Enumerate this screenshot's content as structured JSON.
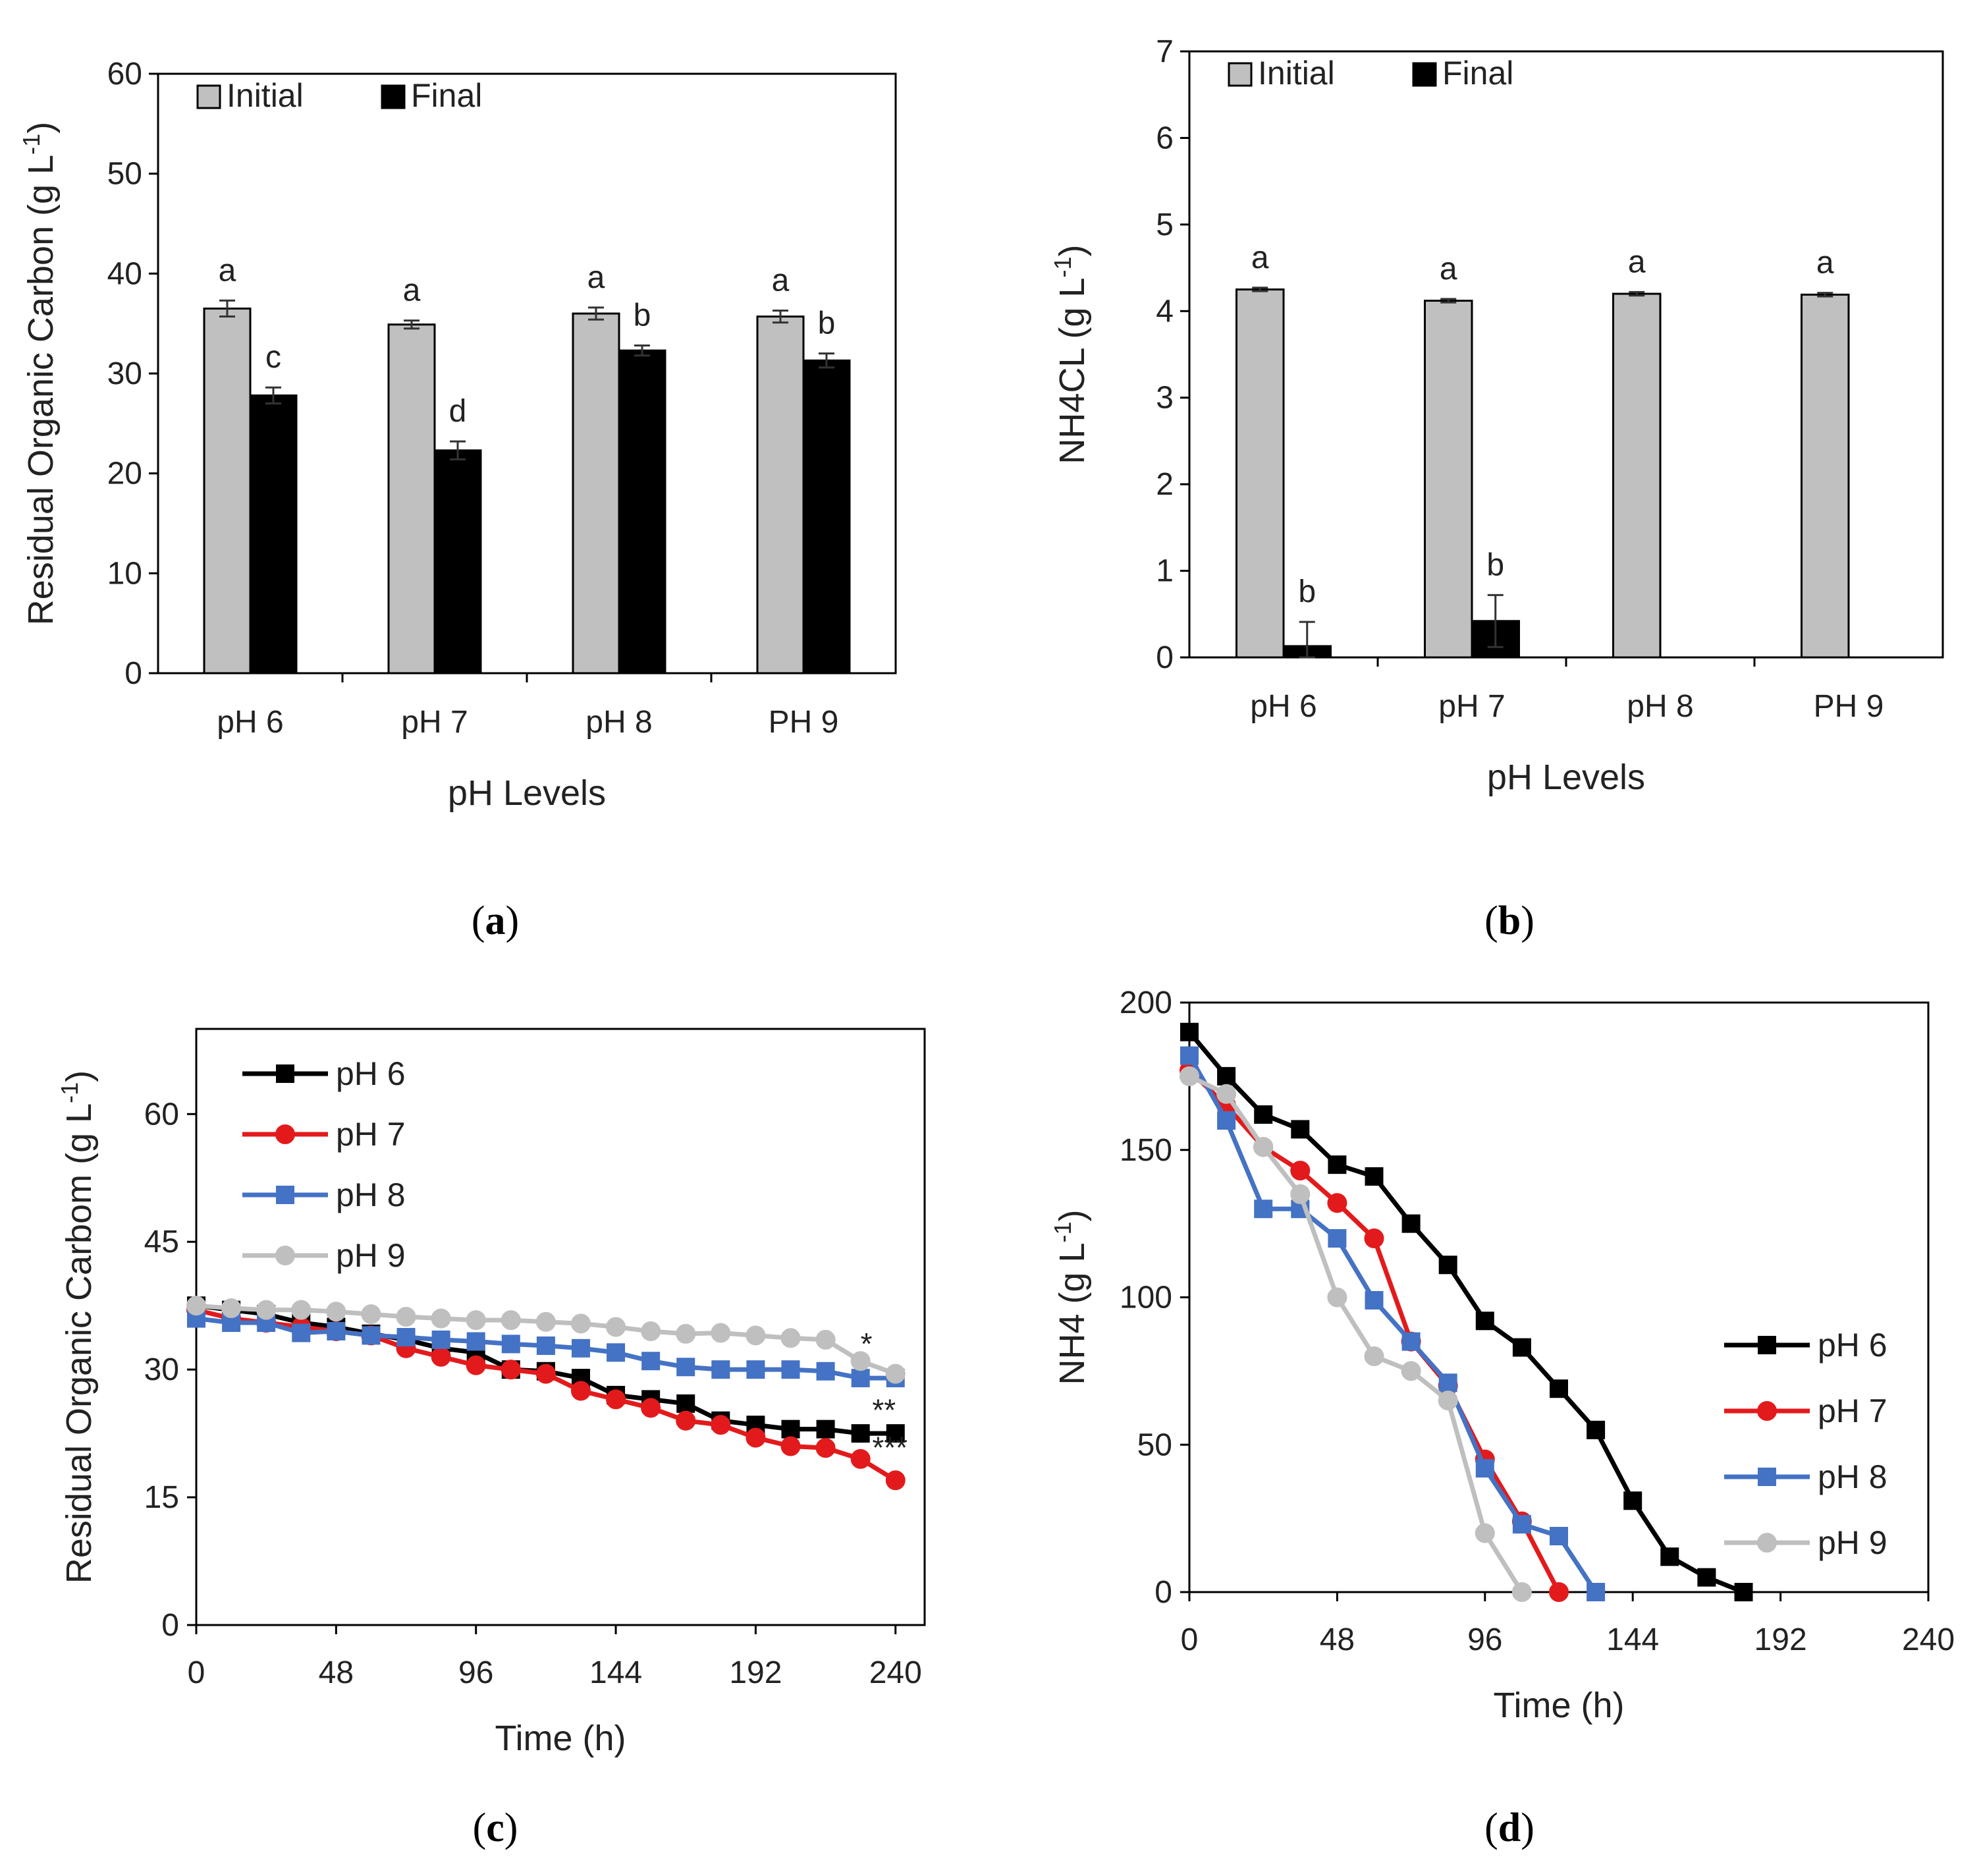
{
  "chart_data": [
    {
      "id": "a",
      "type": "bar",
      "panel_label": "a",
      "xlabel": "pH Levels",
      "ylabel": "Residual Organic Carbon (g L",
      "ylabel_sup": "-1",
      "ylabel_close": ")",
      "ylim": [
        0,
        60
      ],
      "yticks": [
        0,
        10,
        20,
        30,
        40,
        50,
        60
      ],
      "categories": [
        "pH 6",
        "pH 7",
        "pH 8",
        "PH 9"
      ],
      "legend_position": "top-left",
      "series": [
        {
          "name": "Initial",
          "color": "#c0c0c0",
          "values": [
            36.5,
            34.9,
            36.0,
            35.7
          ],
          "errors": [
            0.8,
            0.4,
            0.6,
            0.6
          ],
          "letters": [
            "a",
            "a",
            "a",
            "a"
          ]
        },
        {
          "name": "Final",
          "color": "#000000",
          "values": [
            27.8,
            22.3,
            32.3,
            31.3
          ],
          "errors": [
            0.8,
            0.9,
            0.5,
            0.7
          ],
          "letters": [
            "c",
            "d",
            "b",
            "b"
          ]
        }
      ]
    },
    {
      "id": "b",
      "type": "bar",
      "panel_label": "b",
      "xlabel": "pH Levels",
      "ylabel": "NH4CL (g L",
      "ylabel_sup": "-1",
      "ylabel_close": ")",
      "ylim": [
        0,
        7
      ],
      "yticks": [
        0,
        1,
        2,
        3,
        4,
        5,
        6,
        7
      ],
      "categories": [
        "pH 6",
        "pH 7",
        "pH 8",
        "PH 9"
      ],
      "legend_position": "top-left",
      "series": [
        {
          "name": "Initial",
          "color": "#c0c0c0",
          "values": [
            4.25,
            4.12,
            4.2,
            4.19
          ],
          "errors": [
            0.02,
            0.02,
            0.02,
            0.02
          ],
          "letters": [
            "a",
            "a",
            "a",
            "a"
          ]
        },
        {
          "name": "Final",
          "color": "#000000",
          "values": [
            0.13,
            0.42,
            0.0,
            0.0
          ],
          "errors": [
            0.28,
            0.3,
            0,
            0
          ],
          "letters": [
            "b",
            "b",
            "",
            ""
          ]
        }
      ]
    },
    {
      "id": "c",
      "type": "line",
      "panel_label": "c",
      "xlabel": "Time (h)",
      "ylabel": "Residual Organic Carbom (g L",
      "ylabel_sup": "-1",
      "ylabel_close": ")",
      "xlim": [
        0,
        250
      ],
      "ylim": [
        0,
        70
      ],
      "xticks": [
        0,
        48,
        96,
        144,
        192,
        240
      ],
      "yticks": [
        0,
        15,
        30,
        45,
        60
      ],
      "legend_position": "top-left",
      "x": [
        0,
        12,
        24,
        36,
        48,
        60,
        72,
        84,
        96,
        108,
        120,
        132,
        144,
        156,
        168,
        180,
        192,
        204,
        216,
        228,
        240
      ],
      "series": [
        {
          "name": "pH 6",
          "color": "#000000",
          "marker": "square",
          "values": [
            37.5,
            37.0,
            36.5,
            35.5,
            35.0,
            34.2,
            33.5,
            32.5,
            32.0,
            30.0,
            29.8,
            29.0,
            27.0,
            26.5,
            26.0,
            24.0,
            23.5,
            23.0,
            23.0,
            22.5,
            22.5
          ]
        },
        {
          "name": "pH 7",
          "color": "#e31a1c",
          "marker": "circle",
          "values": [
            37.0,
            36.0,
            35.5,
            35.0,
            34.5,
            34.0,
            32.5,
            31.5,
            30.5,
            30.0,
            29.5,
            27.5,
            26.5,
            25.5,
            24.0,
            23.5,
            22.0,
            21.0,
            20.8,
            19.5,
            17.0
          ]
        },
        {
          "name": "pH 8",
          "color": "#4472c4",
          "marker": "square",
          "values": [
            36.0,
            35.5,
            35.5,
            34.3,
            34.5,
            34.0,
            33.8,
            33.5,
            33.3,
            33.0,
            32.8,
            32.5,
            32.0,
            31.0,
            30.3,
            30.0,
            30.0,
            30.0,
            29.8,
            29.0,
            29.0
          ]
        },
        {
          "name": "pH 9",
          "color": "#bfbfbf",
          "marker": "circle",
          "values": [
            37.5,
            37.2,
            37.0,
            37.0,
            36.8,
            36.5,
            36.2,
            36.0,
            35.8,
            35.8,
            35.6,
            35.4,
            35.0,
            34.5,
            34.2,
            34.3,
            34.0,
            33.7,
            33.5,
            31.0,
            29.5
          ]
        }
      ],
      "annotations": [
        {
          "text": "*",
          "x": 228,
          "y": 31.8
        },
        {
          "text": "**",
          "x": 232,
          "y": 24.0
        },
        {
          "text": "***",
          "x": 232,
          "y": 19.6
        }
      ]
    },
    {
      "id": "d",
      "type": "line",
      "panel_label": "d",
      "xlabel": "Time (h)",
      "ylabel": "NH4 (g L",
      "ylabel_sup": "-1",
      "ylabel_close": ")",
      "xlim": [
        0,
        240
      ],
      "ylim": [
        0,
        200
      ],
      "xticks": [
        0,
        48,
        96,
        144,
        192,
        240
      ],
      "yticks": [
        0,
        50,
        100,
        150,
        200
      ],
      "legend_position": "right",
      "series": [
        {
          "name": "pH 6",
          "color": "#000000",
          "marker": "square",
          "x": [
            0,
            12,
            24,
            36,
            48,
            60,
            72,
            84,
            96,
            108,
            120,
            132,
            144,
            156,
            168,
            180
          ],
          "values": [
            190,
            175,
            162,
            157,
            145,
            141,
            125,
            111,
            92,
            83,
            69,
            55,
            31,
            12,
            5,
            0
          ]
        },
        {
          "name": "pH 7",
          "color": "#e31a1c",
          "marker": "circle",
          "x": [
            0,
            12,
            24,
            36,
            48,
            60,
            72,
            84,
            96,
            108,
            120
          ],
          "values": [
            177,
            165,
            151,
            143,
            132,
            120,
            85,
            70,
            45,
            24,
            0
          ]
        },
        {
          "name": "pH 8",
          "color": "#4472c4",
          "marker": "square",
          "x": [
            0,
            12,
            24,
            36,
            48,
            60,
            72,
            84,
            96,
            108,
            120,
            132
          ],
          "values": [
            182,
            160,
            130,
            130,
            120,
            99,
            85,
            71,
            42,
            23,
            19,
            0
          ]
        },
        {
          "name": "pH 9",
          "color": "#bfbfbf",
          "marker": "circle",
          "x": [
            0,
            12,
            24,
            36,
            48,
            60,
            72,
            84,
            96,
            108
          ],
          "values": [
            175,
            169,
            151,
            135,
            100,
            80,
            75,
            65,
            20,
            0
          ]
        }
      ]
    }
  ]
}
